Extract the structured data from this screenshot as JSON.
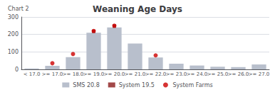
{
  "chart_data": {
    "type": "bar",
    "title": "Weaning Age Days",
    "subtitle": "Chart 2",
    "categories": [
      "< 17.0",
      ">= 17.0",
      ">= 18.0",
      ">= 19.0",
      ">= 20.0",
      ">= 21.0",
      ">= 22.0",
      ">= 23.0",
      ">= 24.0",
      ">= 25.0",
      ">= 26.0",
      ">= 27.0"
    ],
    "series": [
      {
        "name": "SMS 20.8",
        "type": "bar",
        "color": "#b8bfcc",
        "values": [
          5,
          20,
          70,
          210,
          240,
          148,
          68,
          32,
          22,
          15,
          13,
          28
        ]
      },
      {
        "name": "System 19.5",
        "type": "scatter",
        "marker": "square",
        "color": "#8B1A1A",
        "values": [
          null,
          null,
          null,
          218,
          248,
          null,
          null,
          null,
          null,
          null,
          null,
          null
        ]
      },
      {
        "name": "System Farms",
        "type": "scatter",
        "marker": "circle",
        "color": "#cc0000",
        "values": [
          null,
          35,
          88,
          220,
          250,
          null,
          80,
          null,
          null,
          null,
          null,
          null
        ]
      }
    ],
    "ylim": [
      0,
      300
    ],
    "yticks": [
      0,
      100,
      200,
      300
    ],
    "grid": true,
    "legend": "bottom"
  }
}
